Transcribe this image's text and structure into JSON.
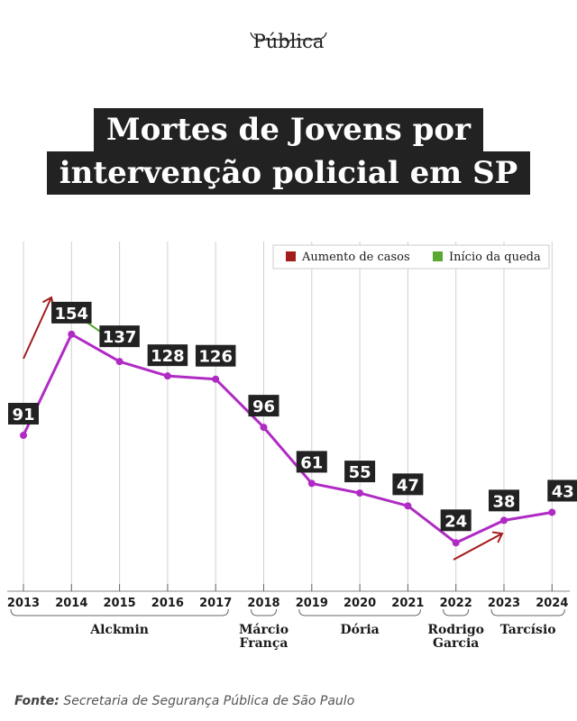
{
  "brand": {
    "name": "Pública"
  },
  "title": {
    "line1": "Mortes de Jovens por",
    "line2": "intervenção policial em SP"
  },
  "source": {
    "label": "Fonte:",
    "text": "Secretaria de Segurança Pública de São Paulo"
  },
  "colors": {
    "line": "#b02bc4",
    "label_bg": "#222222",
    "increase": "#a31d1d",
    "decrease": "#5aa832",
    "grid": "#d0d0d0"
  },
  "chart_data": {
    "type": "line",
    "x": [
      "2013",
      "2014",
      "2015",
      "2016",
      "2017",
      "2018",
      "2019",
      "2020",
      "2021",
      "2022",
      "2023",
      "2024"
    ],
    "series": [
      {
        "values": [
          91,
          154,
          137,
          128,
          126,
          96,
          61,
          55,
          47,
          24,
          38,
          43
        ]
      }
    ],
    "data_labels": [
      "91",
      "154",
      "137",
      "128",
      "126",
      "96",
      "61",
      "55",
      "47",
      "24",
      "38",
      "43"
    ],
    "legend": [
      {
        "label": "Aumento de casos",
        "color": "#a31d1d"
      },
      {
        "label": "Início da queda",
        "color": "#5aa832"
      }
    ],
    "legend_position": "top-right",
    "governors": [
      {
        "name": "Alckmin",
        "from": "2013",
        "to": "2017"
      },
      {
        "name": "Márcio França",
        "from": "2018",
        "to": "2018"
      },
      {
        "name": "Dória",
        "from": "2019",
        "to": "2021"
      },
      {
        "name": "Rodrigo Garcia",
        "from": "2022",
        "to": "2022"
      },
      {
        "name": "Tarcísio",
        "from": "2023",
        "to": "2024"
      }
    ],
    "grid": true,
    "ylim": [
      0,
      160
    ]
  }
}
